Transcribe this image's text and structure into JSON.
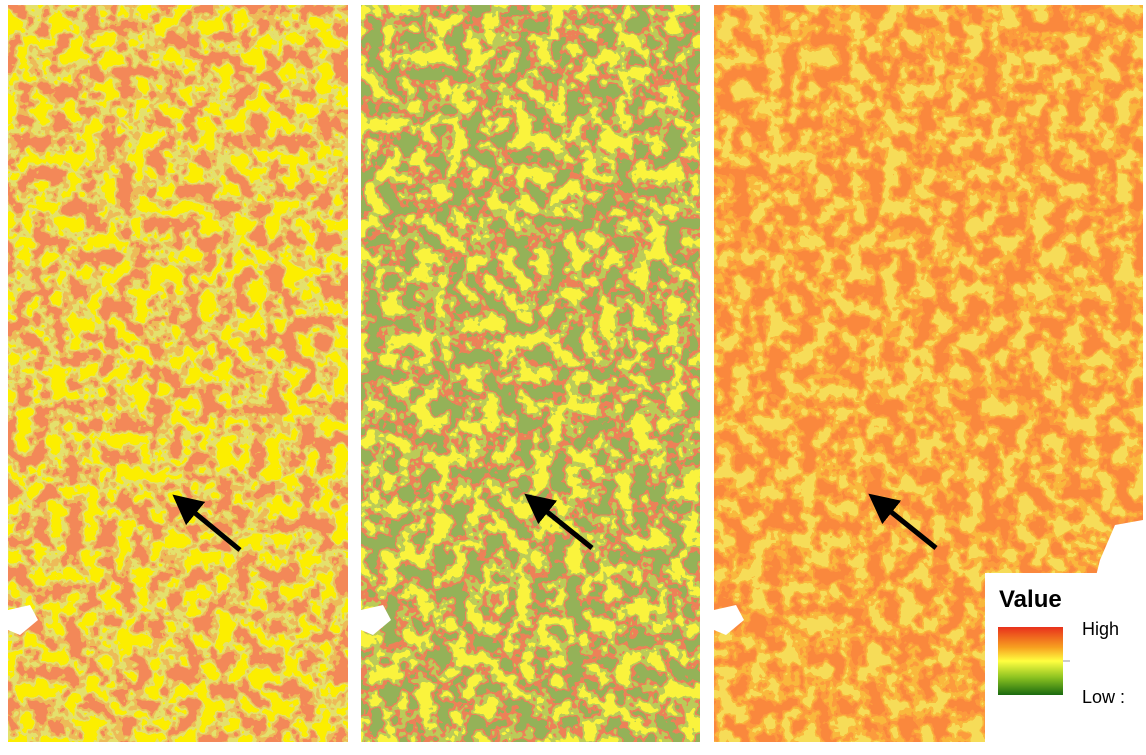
{
  "legend": {
    "title": "Value",
    "high_label": "High",
    "low_label": "Low :"
  }
}
